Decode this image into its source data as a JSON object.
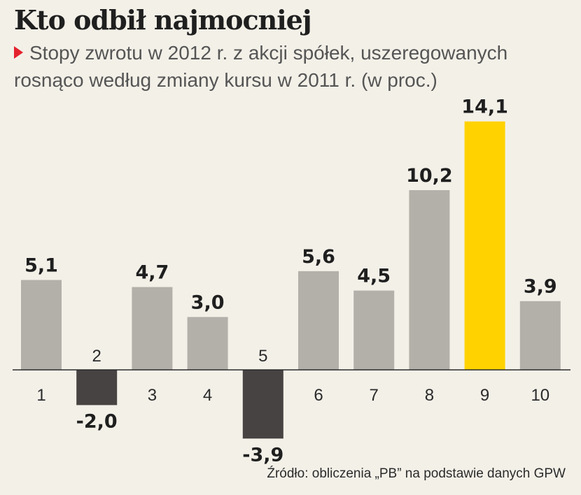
{
  "title": "Kto odbił najmocniej",
  "subtitle_line1": "Stopy zwrotu  w 2012 r. z akcji spółek, uszeregowanych",
  "subtitle_line2": "rosnąco według zmiany kursu w 2011 r. (w proc.)",
  "source": "Źródło: obliczenia „PB” na podstawie danych GPW",
  "colors": {
    "positive": "#b3b0aa",
    "negative": "#474342",
    "highlight": "#ffd200",
    "background": "#f3f0e8"
  },
  "chart_data": {
    "type": "bar",
    "title": "Kto odbił najmocniej",
    "categories": [
      "1",
      "2",
      "3",
      "4",
      "5",
      "6",
      "7",
      "8",
      "9",
      "10"
    ],
    "values": [
      5.1,
      -2.0,
      4.7,
      3.0,
      -3.9,
      5.6,
      4.5,
      10.2,
      14.1,
      3.9
    ],
    "value_labels": [
      "5,1",
      "-2,0",
      "4,7",
      "3,0",
      "-3,9",
      "5,6",
      "4,5",
      "10,2",
      "14,1",
      "3,9"
    ],
    "highlight_category": "9",
    "xlabel": "",
    "ylabel": "",
    "ylim": [
      -3.9,
      14.1
    ],
    "grid": false,
    "legend": "none"
  }
}
